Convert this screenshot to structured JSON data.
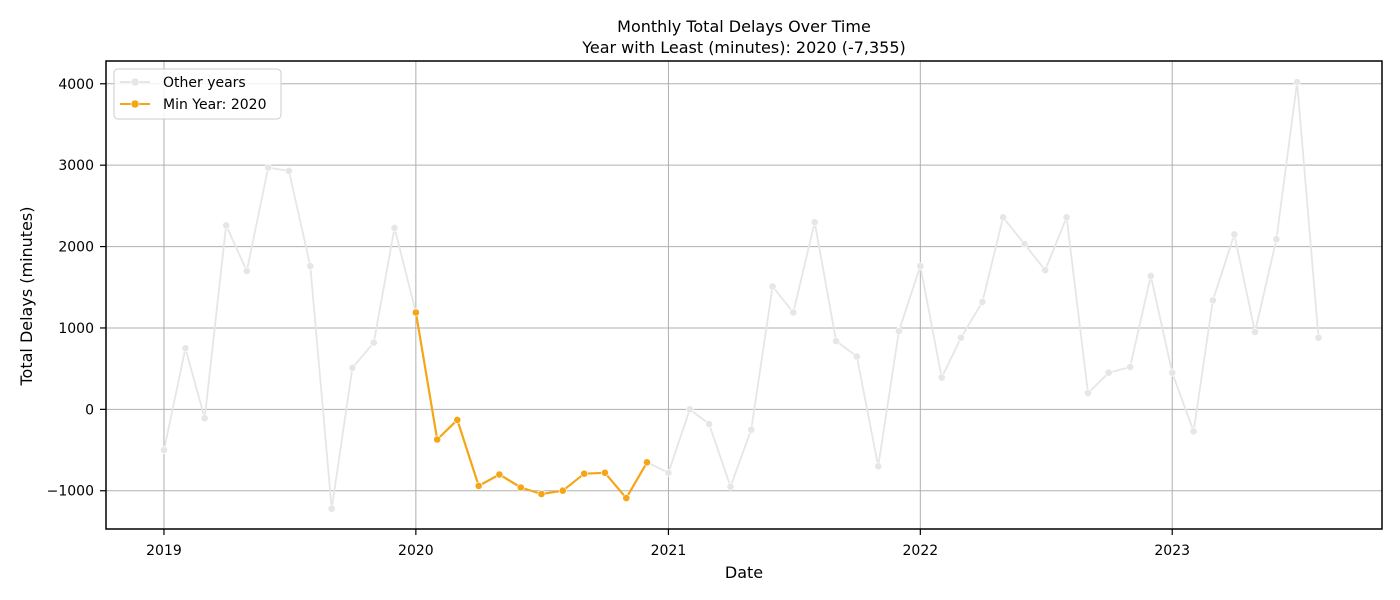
{
  "chart_data": {
    "type": "line",
    "title": "Monthly Total Delays Over Time",
    "subtitle": "Year with Least (minutes): 2020 (-7,355)",
    "xlabel": "Date",
    "ylabel": "Total Delays (minutes)",
    "x_ticks": [
      "2019",
      "2020",
      "2021",
      "2022",
      "2023"
    ],
    "y_ticks": [
      -1000,
      0,
      1000,
      2000,
      3000,
      4000
    ],
    "xlim": [
      "2018-10-09",
      "2023-11-01"
    ],
    "ylim": [
      -1470,
      4280
    ],
    "grid": true,
    "legend_position": "top-left",
    "series": [
      {
        "name": "Other years",
        "color": "#e6e6e6",
        "points": [
          [
            "2019-01-01",
            -500
          ],
          [
            "2019-02-01",
            750
          ],
          [
            "2019-03-01",
            -110
          ],
          [
            "2019-04-01",
            2260
          ],
          [
            "2019-05-01",
            1700
          ],
          [
            "2019-06-01",
            2970
          ],
          [
            "2019-07-01",
            2930
          ],
          [
            "2019-08-01",
            1760
          ],
          [
            "2019-09-01",
            -1220
          ],
          [
            "2019-10-01",
            510
          ],
          [
            "2019-11-01",
            820
          ],
          [
            "2019-12-01",
            2230
          ],
          [
            "2020-01-01",
            1190
          ],
          null,
          [
            "2020-12-01",
            -650
          ],
          [
            "2021-01-01",
            -780
          ],
          [
            "2021-02-01",
            0
          ],
          [
            "2021-03-01",
            -180
          ],
          [
            "2021-04-01",
            -950
          ],
          [
            "2021-05-01",
            -250
          ],
          [
            "2021-06-01",
            1510
          ],
          [
            "2021-07-01",
            1190
          ],
          [
            "2021-08-01",
            2300
          ],
          [
            "2021-09-01",
            840
          ],
          [
            "2021-10-01",
            650
          ],
          [
            "2021-11-01",
            -700
          ],
          [
            "2021-12-01",
            960
          ],
          [
            "2022-01-01",
            1760
          ],
          [
            "2022-02-01",
            390
          ],
          [
            "2022-03-01",
            880
          ],
          [
            "2022-04-01",
            1320
          ],
          [
            "2022-05-01",
            2360
          ],
          [
            "2022-06-01",
            2030
          ],
          [
            "2022-07-01",
            1710
          ],
          [
            "2022-08-01",
            2360
          ],
          [
            "2022-09-01",
            200
          ],
          [
            "2022-10-01",
            450
          ],
          [
            "2022-11-01",
            520
          ],
          [
            "2022-12-01",
            1640
          ],
          [
            "2023-01-01",
            450
          ],
          [
            "2023-02-01",
            -270
          ],
          [
            "2023-03-01",
            1340
          ],
          [
            "2023-04-01",
            2150
          ],
          [
            "2023-05-01",
            950
          ],
          [
            "2023-06-01",
            2090
          ],
          [
            "2023-07-01",
            4020
          ],
          [
            "2023-08-01",
            880
          ]
        ]
      },
      {
        "name": "Min Year: 2020",
        "color": "#f5a516",
        "points": [
          [
            "2020-01-01",
            1190
          ],
          [
            "2020-02-01",
            -370
          ],
          [
            "2020-03-01",
            -130
          ],
          [
            "2020-04-01",
            -940
          ],
          [
            "2020-05-01",
            -800
          ],
          [
            "2020-06-01",
            -960
          ],
          [
            "2020-07-01",
            -1040
          ],
          [
            "2020-08-01",
            -1000
          ],
          [
            "2020-09-01",
            -790
          ],
          [
            "2020-10-01",
            -780
          ],
          [
            "2020-11-01",
            -1090
          ],
          [
            "2020-12-01",
            -650
          ]
        ]
      }
    ]
  }
}
